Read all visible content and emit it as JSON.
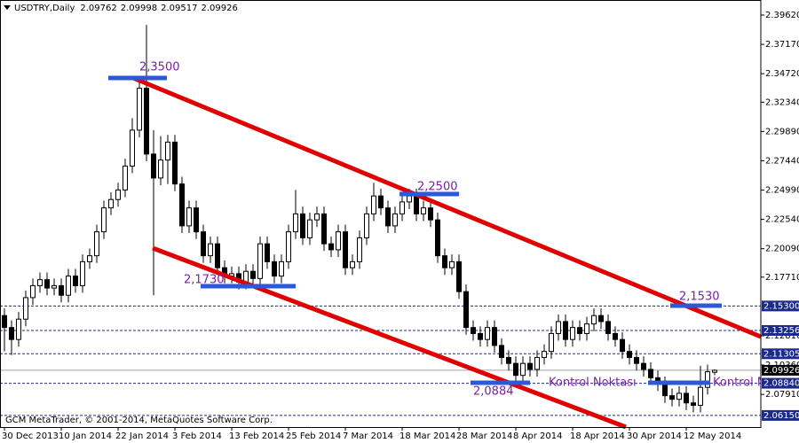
{
  "chart_data": {
    "type": "candlestick",
    "symbol": "USDTRY,Daily",
    "categories": [
      "30 Dec 2013",
      null,
      null,
      null,
      null,
      null,
      null,
      null,
      "10 Jan 2014",
      null,
      null,
      null,
      null,
      null,
      null,
      null,
      "22 Jan 2014",
      null,
      null,
      null,
      null,
      null,
      null,
      null,
      "3 Feb 2014",
      null,
      null,
      null,
      null,
      null,
      null,
      null,
      "13 Feb 2014",
      null,
      null,
      null,
      null,
      null,
      null,
      null,
      "25 Feb 2014",
      null,
      null,
      null,
      null,
      null,
      null,
      null,
      "7 Mar 2014",
      null,
      null,
      null,
      null,
      null,
      null,
      null,
      "18 Mar 2014",
      null,
      null,
      null,
      null,
      null,
      null,
      null,
      "28 Mar 2014",
      null,
      null,
      null,
      null,
      null,
      null,
      null,
      "8 Apr 2014",
      null,
      null,
      null,
      null,
      null,
      null,
      null,
      "18 Apr 2014",
      null,
      null,
      null,
      null,
      null,
      null,
      null,
      "30 Apr 2014",
      null,
      null,
      null,
      null,
      null,
      null,
      null,
      "12 May 2014",
      null,
      null,
      null,
      null
    ],
    "ohlc": [
      [
        2.145,
        2.151,
        2.115,
        2.135
      ],
      [
        2.135,
        2.141,
        2.112,
        2.125
      ],
      [
        2.125,
        2.148,
        2.119,
        2.142
      ],
      [
        2.142,
        2.166,
        2.136,
        2.16
      ],
      [
        2.16,
        2.176,
        2.154,
        2.17
      ],
      [
        2.17,
        2.181,
        2.164,
        2.175
      ],
      [
        2.175,
        2.181,
        2.162,
        2.168
      ],
      [
        2.168,
        2.176,
        2.162,
        2.17
      ],
      [
        2.17,
        2.176,
        2.156,
        2.162
      ],
      [
        2.162,
        2.184,
        2.156,
        2.178
      ],
      [
        2.178,
        2.184,
        2.164,
        2.17
      ],
      [
        2.17,
        2.196,
        2.164,
        2.19
      ],
      [
        2.19,
        2.201,
        2.184,
        2.195
      ],
      [
        2.195,
        2.221,
        2.189,
        2.215
      ],
      [
        2.215,
        2.241,
        2.209,
        2.235
      ],
      [
        2.235,
        2.248,
        2.229,
        2.242
      ],
      [
        2.242,
        2.256,
        2.236,
        2.25
      ],
      [
        2.25,
        2.276,
        2.244,
        2.27
      ],
      [
        2.27,
        2.31,
        2.264,
        2.3
      ],
      [
        2.3,
        2.345,
        2.294,
        2.335
      ],
      [
        2.335,
        2.388,
        2.274,
        2.28
      ],
      [
        2.28,
        2.3,
        2.162,
        2.26
      ],
      [
        2.26,
        2.295,
        2.254,
        2.275
      ],
      [
        2.275,
        2.296,
        2.255,
        2.29
      ],
      [
        2.29,
        2.296,
        2.249,
        2.255
      ],
      [
        2.255,
        2.261,
        2.214,
        2.22
      ],
      [
        2.22,
        2.241,
        2.214,
        2.235
      ],
      [
        2.235,
        2.241,
        2.209,
        2.215
      ],
      [
        2.215,
        2.221,
        2.189,
        2.195
      ],
      [
        2.195,
        2.211,
        2.189,
        2.205
      ],
      [
        2.205,
        2.211,
        2.179,
        2.185
      ],
      [
        2.185,
        2.191,
        2.172,
        2.178
      ],
      [
        2.178,
        2.186,
        2.172,
        2.18
      ],
      [
        2.18,
        2.186,
        2.167,
        2.173
      ],
      [
        2.173,
        2.188,
        2.167,
        2.182
      ],
      [
        2.182,
        2.188,
        2.17,
        2.176
      ],
      [
        2.176,
        2.211,
        2.17,
        2.205
      ],
      [
        2.205,
        2.211,
        2.184,
        2.19
      ],
      [
        2.19,
        2.196,
        2.172,
        2.178
      ],
      [
        2.178,
        2.196,
        2.172,
        2.19
      ],
      [
        2.19,
        2.221,
        2.184,
        2.215
      ],
      [
        2.215,
        2.25,
        2.209,
        2.23
      ],
      [
        2.23,
        2.236,
        2.204,
        2.21
      ],
      [
        2.21,
        2.231,
        2.204,
        2.225
      ],
      [
        2.225,
        2.236,
        2.219,
        2.23
      ],
      [
        2.23,
        2.236,
        2.199,
        2.205
      ],
      [
        2.205,
        2.211,
        2.194,
        2.2
      ],
      [
        2.2,
        2.221,
        2.194,
        2.215
      ],
      [
        2.215,
        2.221,
        2.179,
        2.185
      ],
      [
        2.185,
        2.196,
        2.179,
        2.19
      ],
      [
        2.19,
        2.216,
        2.184,
        2.21
      ],
      [
        2.21,
        2.236,
        2.204,
        2.23
      ],
      [
        2.23,
        2.256,
        2.224,
        2.245
      ],
      [
        2.245,
        2.251,
        2.229,
        2.235
      ],
      [
        2.235,
        2.241,
        2.214,
        2.22
      ],
      [
        2.22,
        2.236,
        2.214,
        2.23
      ],
      [
        2.23,
        2.246,
        2.224,
        2.24
      ],
      [
        2.24,
        2.251,
        2.234,
        2.245
      ],
      [
        2.245,
        2.251,
        2.224,
        2.23
      ],
      [
        2.23,
        2.241,
        2.224,
        2.235
      ],
      [
        2.235,
        2.241,
        2.219,
        2.225
      ],
      [
        2.225,
        2.231,
        2.189,
        2.195
      ],
      [
        2.195,
        2.201,
        2.179,
        2.185
      ],
      [
        2.185,
        2.196,
        2.179,
        2.19
      ],
      [
        2.19,
        2.196,
        2.159,
        2.165
      ],
      [
        2.165,
        2.171,
        2.129,
        2.135
      ],
      [
        2.135,
        2.141,
        2.124,
        2.13
      ],
      [
        2.13,
        2.136,
        2.119,
        2.125
      ],
      [
        2.125,
        2.141,
        2.119,
        2.135
      ],
      [
        2.135,
        2.141,
        2.114,
        2.12
      ],
      [
        2.12,
        2.126,
        2.104,
        2.11
      ],
      [
        2.11,
        2.116,
        2.099,
        2.105
      ],
      [
        2.105,
        2.111,
        2.088,
        2.095
      ],
      [
        2.095,
        2.111,
        2.089,
        2.105
      ],
      [
        2.105,
        2.111,
        2.094,
        2.1
      ],
      [
        2.1,
        2.116,
        2.094,
        2.11
      ],
      [
        2.11,
        2.121,
        2.104,
        2.115
      ],
      [
        2.115,
        2.136,
        2.109,
        2.13
      ],
      [
        2.13,
        2.146,
        2.124,
        2.14
      ],
      [
        2.14,
        2.146,
        2.119,
        2.125
      ],
      [
        2.125,
        2.141,
        2.119,
        2.135
      ],
      [
        2.135,
        2.141,
        2.124,
        2.13
      ],
      [
        2.13,
        2.144,
        2.124,
        2.138
      ],
      [
        2.138,
        2.151,
        2.132,
        2.145
      ],
      [
        2.145,
        2.151,
        2.134,
        2.14
      ],
      [
        2.14,
        2.146,
        2.124,
        2.13
      ],
      [
        2.13,
        2.136,
        2.119,
        2.125
      ],
      [
        2.125,
        2.131,
        2.109,
        2.115
      ],
      [
        2.115,
        2.121,
        2.104,
        2.11
      ],
      [
        2.11,
        2.116,
        2.099,
        2.105
      ],
      [
        2.105,
        2.111,
        2.094,
        2.1
      ],
      [
        2.1,
        2.106,
        2.087,
        2.093
      ],
      [
        2.093,
        2.099,
        2.082,
        2.088
      ],
      [
        2.088,
        2.094,
        2.072,
        2.078
      ],
      [
        2.078,
        2.084,
        2.069,
        2.075
      ],
      [
        2.075,
        2.086,
        2.069,
        2.08
      ],
      [
        2.08,
        2.086,
        2.066,
        2.072
      ],
      [
        2.072,
        2.078,
        2.064,
        2.07
      ],
      [
        2.07,
        2.103,
        2.064,
        2.085
      ],
      [
        2.085,
        2.104,
        2.079,
        2.098
      ],
      [
        2.09762,
        2.09998,
        2.09517,
        2.09926
      ]
    ],
    "ylim": [
      2.0518,
      2.4088
    ],
    "yticks": [
      {
        "value": 2.3962,
        "label": "2.39620"
      },
      {
        "value": 2.3717,
        "label": "2.37170"
      },
      {
        "value": 2.3472,
        "label": "2.34720"
      },
      {
        "value": 2.3234,
        "label": "2.32340"
      },
      {
        "value": 2.2989,
        "label": "2.29890"
      },
      {
        "value": 2.2744,
        "label": "2.27440"
      },
      {
        "value": 2.2499,
        "label": "2.24990"
      },
      {
        "value": 2.2254,
        "label": "2.22540"
      },
      {
        "value": 2.2009,
        "label": "2.20090"
      },
      {
        "value": 2.1771,
        "label": "2.17710"
      },
      {
        "value": 2.1281,
        "label": "2.12810"
      },
      {
        "value": 2.1036,
        "label": "2.10360"
      },
      {
        "value": 2.0791,
        "label": "2.07910"
      }
    ],
    "levels": [
      {
        "value": 2.153,
        "label": "2.15300"
      },
      {
        "value": 2.13256,
        "label": "2.13256"
      },
      {
        "value": 2.11305,
        "label": "2.11305"
      },
      {
        "value": 2.0884,
        "label": "2.08840"
      },
      {
        "value": 2.0615,
        "label": "2.06150"
      }
    ],
    "current": 2.09926,
    "annotations": [
      "2,3500",
      "2,2500",
      "2,1730",
      "2,1530",
      "2,0884",
      "Kontrol Noktası",
      "Kontrol Noktası"
    ],
    "footer": "GCM MetaTrader, © 2001-2014, MetaQuotes Software Corp."
  }
}
